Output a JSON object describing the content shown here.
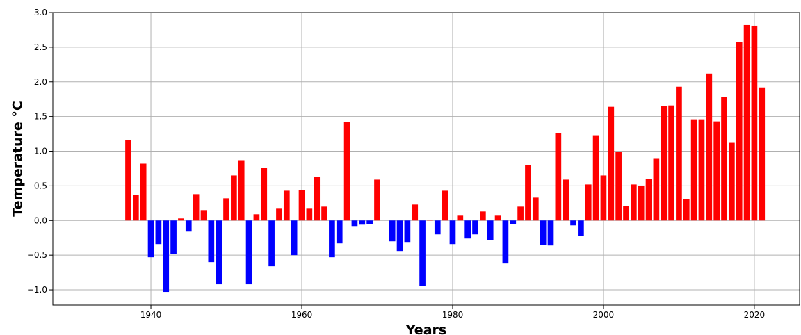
{
  "chart_data": {
    "type": "bar",
    "title": "",
    "xlabel": "Years",
    "ylabel": "Temperature °C",
    "xlim": [
      1927,
      2026
    ],
    "ylim": [
      -1.22,
      3.0
    ],
    "x_ticks": [
      1940,
      1960,
      1980,
      2000,
      2020
    ],
    "y_ticks": [
      -1.0,
      -0.5,
      0.0,
      0.5,
      1.0,
      1.5,
      2.0,
      2.5,
      3.0
    ],
    "y_tick_labels": [
      "−1.0",
      "−0.5",
      "0.0",
      "0.5",
      "1.0",
      "1.5",
      "2.0",
      "2.5",
      "3.0"
    ],
    "grid": true,
    "colors": {
      "positive": "#ff0000",
      "negative": "#0000ff"
    },
    "x": [
      1937,
      1938,
      1939,
      1940,
      1941,
      1942,
      1943,
      1944,
      1945,
      1946,
      1947,
      1948,
      1949,
      1950,
      1951,
      1952,
      1953,
      1954,
      1955,
      1956,
      1957,
      1958,
      1959,
      1960,
      1961,
      1962,
      1963,
      1964,
      1965,
      1966,
      1967,
      1968,
      1969,
      1970,
      1971,
      1972,
      1973,
      1974,
      1975,
      1976,
      1977,
      1978,
      1979,
      1980,
      1981,
      1982,
      1983,
      1984,
      1985,
      1986,
      1987,
      1988,
      1989,
      1990,
      1991,
      1992,
      1993,
      1994,
      1995,
      1996,
      1997,
      1998,
      1999,
      2000,
      2001,
      2002,
      2003,
      2004,
      2005,
      2006,
      2007,
      2008,
      2009,
      2010,
      2011,
      2012,
      2013,
      2014,
      2015,
      2016,
      2017,
      2018,
      2019,
      2020,
      2021
    ],
    "values": [
      1.16,
      0.37,
      0.82,
      -0.53,
      -0.34,
      -1.03,
      -0.48,
      0.03,
      -0.16,
      0.38,
      0.15,
      -0.6,
      -0.92,
      0.32,
      0.65,
      0.87,
      -0.92,
      0.09,
      0.76,
      -0.66,
      0.18,
      0.43,
      -0.5,
      0.44,
      0.18,
      0.63,
      0.2,
      -0.53,
      -0.33,
      1.42,
      -0.08,
      -0.06,
      -0.05,
      0.59,
      0.0,
      -0.3,
      -0.44,
      -0.31,
      0.23,
      -0.94,
      0.01,
      -0.2,
      0.43,
      -0.34,
      0.07,
      -0.26,
      -0.2,
      0.13,
      -0.28,
      0.07,
      -0.62,
      -0.05,
      0.2,
      0.8,
      0.33,
      -0.35,
      -0.36,
      1.26,
      0.59,
      -0.07,
      -0.22,
      0.52,
      1.23,
      0.65,
      1.64,
      0.99,
      0.21,
      0.52,
      0.5,
      0.6,
      0.89,
      1.65,
      1.66,
      1.93,
      0.31,
      1.46,
      1.46,
      2.12,
      1.43,
      1.78,
      1.12,
      2.57,
      2.82,
      2.81,
      1.92
    ]
  }
}
